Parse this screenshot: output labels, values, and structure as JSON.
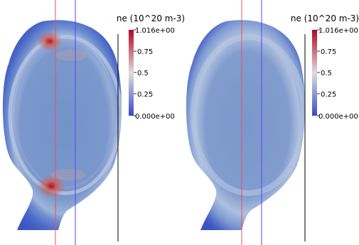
{
  "chart_data": [
    {
      "type": "heatmap",
      "quantity": "ne (10^20 m-3)",
      "colorbar": {
        "title": "ne (10^20 m-3)",
        "min": 0.0,
        "max": 1.016,
        "min_label": "0.000e+00",
        "max_label": "1.016e+00",
        "tick_values": [
          0.75,
          0.5,
          0.25
        ],
        "tick_labels": [
          "0.75",
          "0.5",
          "0.25"
        ],
        "colormap": [
          "#3b4cc0",
          "#dddddd",
          "#b40426"
        ]
      },
      "background_level": 0.35,
      "reference_lines": [
        {
          "color": "#e8505a"
        },
        {
          "color": "#5a40ff"
        },
        {
          "color": "#000000"
        }
      ]
    },
    {
      "type": "heatmap",
      "quantity": "ne (10^20 m-3)",
      "colorbar": {
        "title": "ne (10^20 m-3)",
        "min": 0.0,
        "max": 1.016,
        "min_label": "0.000e+00",
        "max_label": "1.016e+00",
        "tick_values": [
          0.75,
          0.5,
          0.25
        ],
        "tick_labels": [
          "0.75",
          "0.5",
          "0.25"
        ],
        "colormap": [
          "#3b4cc0",
          "#dddddd",
          "#b40426"
        ]
      },
      "background_level": 0.35,
      "reference_lines": [
        {
          "color": "#e8505a"
        },
        {
          "color": "#5a40ff"
        },
        {
          "color": "#000000"
        }
      ]
    }
  ]
}
